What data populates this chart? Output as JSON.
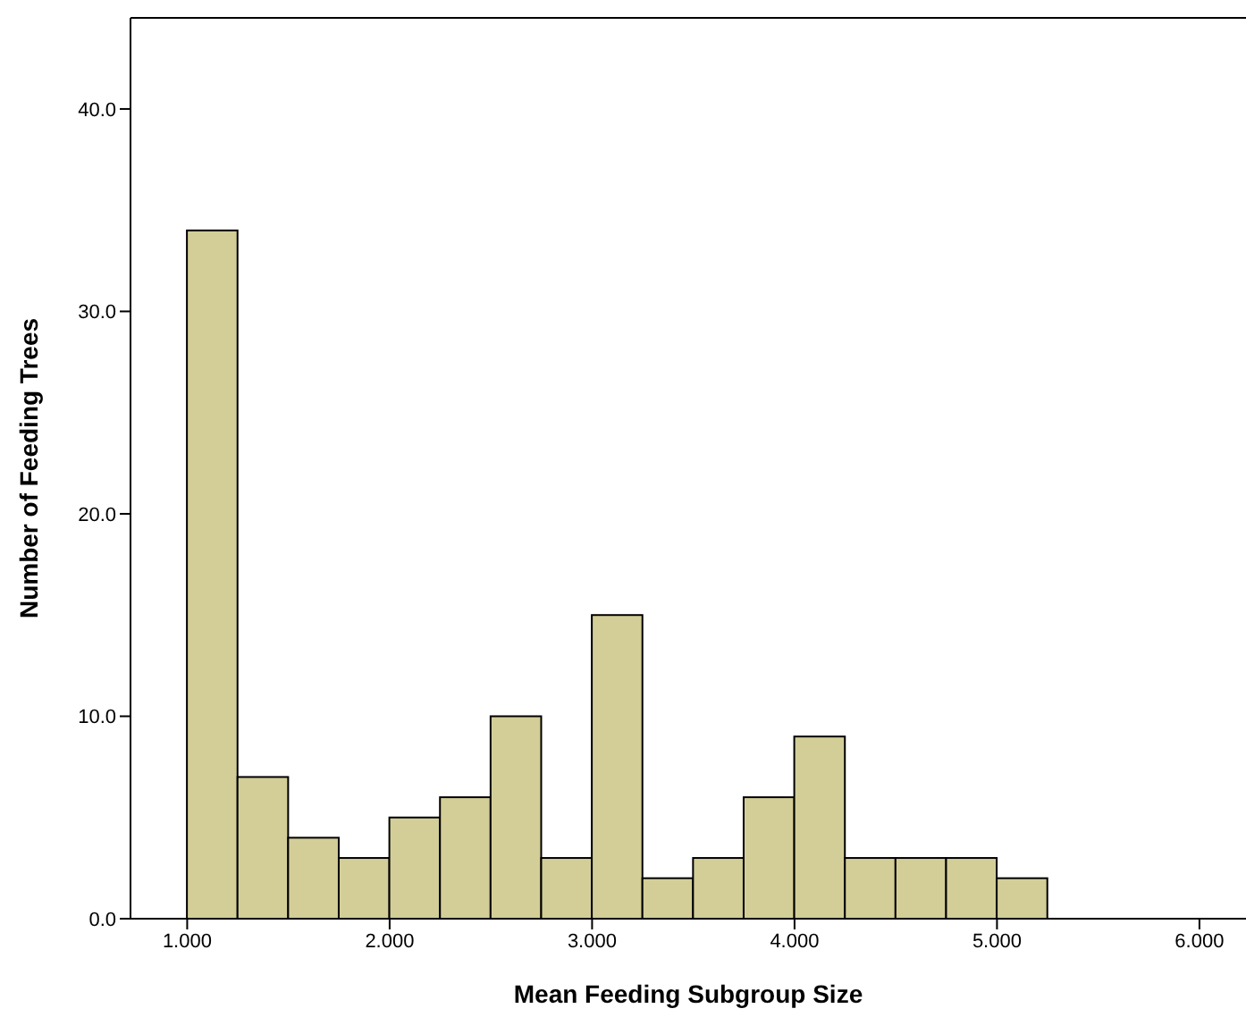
{
  "chart_data": {
    "type": "histogram",
    "xlabel": "Mean Feeding Subgroup Size",
    "ylabel": "Number of Feeding Trees",
    "bins": [
      1.0,
      1.25,
      1.5,
      1.75,
      2.0,
      2.25,
      2.5,
      2.75,
      3.0,
      3.25,
      3.5,
      3.75,
      4.0,
      4.25,
      4.5,
      4.75,
      5.0,
      5.25
    ],
    "values": [
      34,
      7,
      4,
      3,
      5,
      6,
      10,
      3,
      15,
      2,
      3,
      6,
      9,
      3,
      3,
      3,
      2
    ],
    "color": "#d3ce97",
    "xlim": [
      0.72,
      6.23
    ],
    "xticks": [
      {
        "value": 1,
        "label": "1.000"
      },
      {
        "value": 2,
        "label": "2.000"
      },
      {
        "value": 3,
        "label": "3.000"
      },
      {
        "value": 4,
        "label": "4.000"
      },
      {
        "value": 5,
        "label": "5.000"
      },
      {
        "value": 6,
        "label": "6.000"
      }
    ],
    "ylim": [
      0,
      44.5
    ],
    "yticks": [
      {
        "value": 0,
        "label": "0.0"
      },
      {
        "value": 10,
        "label": "10.0"
      },
      {
        "value": 20,
        "label": "20.0"
      },
      {
        "value": 30,
        "label": "30.0"
      },
      {
        "value": 40,
        "label": "40.0"
      }
    ],
    "grid": false
  }
}
